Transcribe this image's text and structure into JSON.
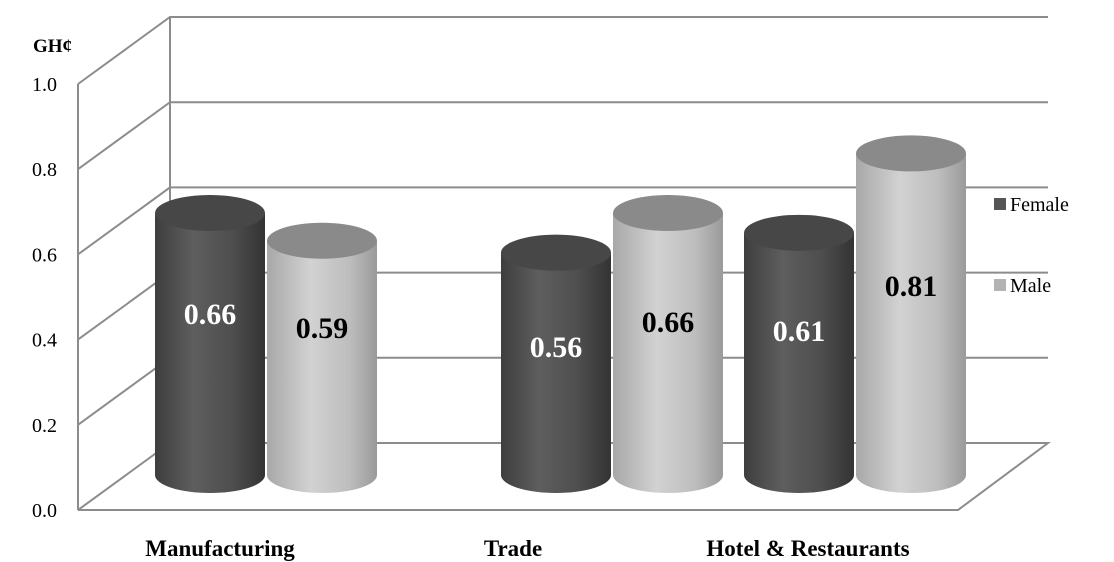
{
  "chart_data": {
    "type": "bar",
    "style": "3d-cylinder",
    "unit_label": "GH¢",
    "categories": [
      "Manufacturing",
      "Trade",
      "Hotel & Restaurants"
    ],
    "series": [
      {
        "name": "Female",
        "values": [
          0.66,
          0.56,
          0.61
        ],
        "value_labels": [
          "0.66",
          "0.56",
          "0.61"
        ],
        "color": "#555555",
        "label_color": "#ffffff"
      },
      {
        "name": "Male",
        "values": [
          0.59,
          0.66,
          0.81
        ],
        "value_labels": [
          "0.59",
          "0.66",
          "0.81"
        ],
        "color": "#b3b3b3",
        "label_color": "#000000"
      }
    ],
    "ylim": [
      0,
      1.0
    ],
    "yticks": [
      "0.0",
      "0.2",
      "0.4",
      "0.6",
      "0.8",
      "1.0"
    ],
    "grid": true,
    "legend_position": "right"
  }
}
